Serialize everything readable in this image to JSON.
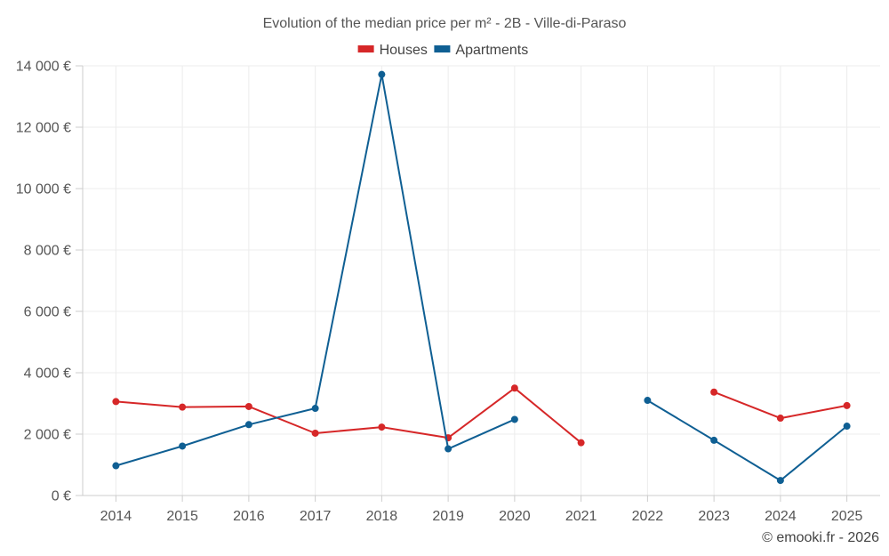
{
  "chart_data": {
    "type": "line",
    "title": "Evolution of the median price per m² - 2B - Ville-di-Paraso",
    "xlabel": "",
    "ylabel": "",
    "categories": [
      "2014",
      "2015",
      "2016",
      "2017",
      "2018",
      "2019",
      "2020",
      "2021",
      "2022",
      "2023",
      "2024",
      "2025"
    ],
    "ylim": [
      0,
      14000
    ],
    "y_ticks": [
      0,
      2000,
      4000,
      6000,
      8000,
      10000,
      12000,
      14000
    ],
    "y_tick_labels": [
      "0 €",
      "2 000 €",
      "4 000 €",
      "6 000 €",
      "8 000 €",
      "10 000 €",
      "12 000 €",
      "14 000 €"
    ],
    "grid": true,
    "legend_position": "top-center",
    "series": [
      {
        "name": "Houses",
        "color": "#d62728",
        "values": [
          3060,
          2880,
          2900,
          2030,
          2230,
          1880,
          3500,
          1720,
          null,
          3370,
          2520,
          2930
        ]
      },
      {
        "name": "Apartments",
        "color": "#0f5f93",
        "values": [
          970,
          1610,
          2310,
          2840,
          13720,
          1520,
          2480,
          null,
          3100,
          1800,
          490,
          2260
        ]
      }
    ]
  },
  "credit": "© emooki.fr - 2026"
}
